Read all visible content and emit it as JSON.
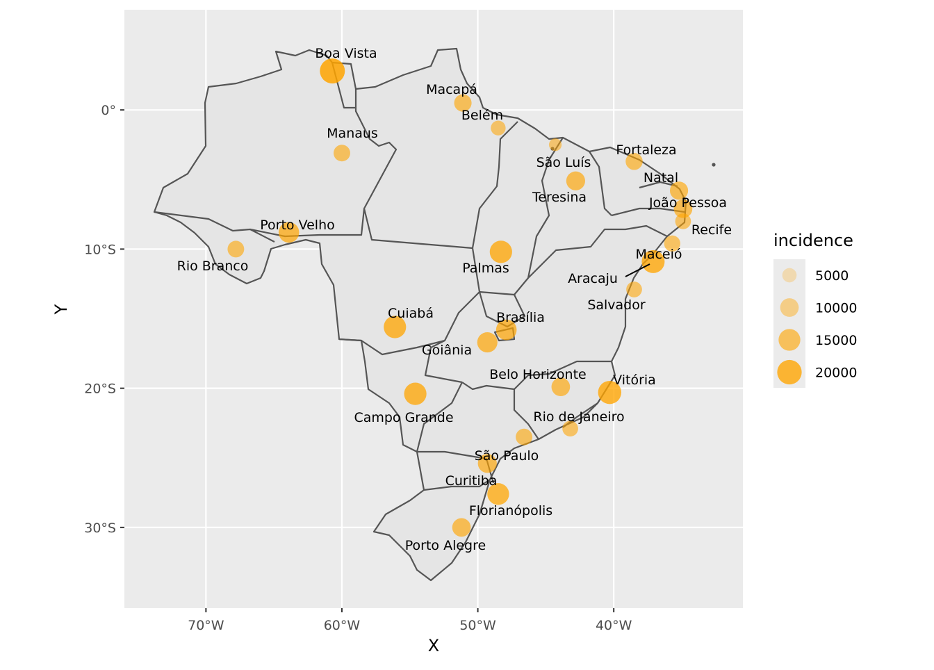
{
  "map": {
    "xlabel": "X",
    "ylabel": "Y",
    "x_ticks": [
      {
        "lon": -70,
        "label": "70°W"
      },
      {
        "lon": -60,
        "label": "60°W"
      },
      {
        "lon": -50,
        "label": "50°W"
      },
      {
        "lon": -40,
        "label": "40°W"
      }
    ],
    "y_ticks": [
      {
        "lat": 0,
        "label": "0°"
      },
      {
        "lat": -10,
        "label": "10°S"
      },
      {
        "lat": -20,
        "label": "20°S"
      },
      {
        "lat": -30,
        "label": "30°S"
      }
    ],
    "point_color": "#FFA500",
    "legend": {
      "title": "incidence",
      "entries": [
        {
          "value": 5000,
          "label": "5000"
        },
        {
          "value": 10000,
          "label": "10000"
        },
        {
          "value": 15000,
          "label": "15000"
        },
        {
          "value": 20000,
          "label": "20000"
        }
      ]
    }
  },
  "chart_data": {
    "type": "scatter",
    "xlabel": "X",
    "ylabel": "Y",
    "xlim": [
      -76,
      -30.5
    ],
    "ylim": [
      -35.8,
      7.2
    ],
    "size_variable": "incidence",
    "points": [
      {
        "city": "Boa Vista",
        "lon": -60.7,
        "lat": 2.8,
        "incidence": 21000
      },
      {
        "city": "Macapá",
        "lon": -51.1,
        "lat": 0.5,
        "incidence": 8500
      },
      {
        "city": "Belém",
        "lon": -48.5,
        "lat": -1.3,
        "incidence": 5500
      },
      {
        "city": "Manaus",
        "lon": -60.0,
        "lat": -3.1,
        "incidence": 7500
      },
      {
        "city": "São Luís",
        "lon": -44.3,
        "lat": -2.5,
        "incidence": 3500
      },
      {
        "city": "Fortaleza",
        "lon": -38.5,
        "lat": -3.7,
        "incidence": 8000
      },
      {
        "city": "Teresina",
        "lon": -42.8,
        "lat": -5.1,
        "incidence": 10500
      },
      {
        "city": "Natal",
        "lon": -35.2,
        "lat": -5.8,
        "incidence": 9500
      },
      {
        "city": "João Pessoa",
        "lon": -34.9,
        "lat": -7.1,
        "incidence": 10000
      },
      {
        "city": "Recife",
        "lon": -34.9,
        "lat": -8.0,
        "incidence": 6500
      },
      {
        "city": "Porto Velho",
        "lon": -63.9,
        "lat": -8.8,
        "incidence": 13000
      },
      {
        "city": "Rio Branco",
        "lon": -67.8,
        "lat": -10.0,
        "incidence": 7500
      },
      {
        "city": "Palmas",
        "lon": -48.3,
        "lat": -10.2,
        "incidence": 16000
      },
      {
        "city": "Maceió",
        "lon": -35.7,
        "lat": -9.6,
        "incidence": 7000
      },
      {
        "city": "Aracaju",
        "lon": -37.1,
        "lat": -10.9,
        "incidence": 17000
      },
      {
        "city": "Salvador",
        "lon": -38.5,
        "lat": -12.9,
        "incidence": 6500
      },
      {
        "city": "Cuiabá",
        "lon": -56.1,
        "lat": -15.6,
        "incidence": 16000
      },
      {
        "city": "Brasília",
        "lon": -47.9,
        "lat": -15.8,
        "incidence": 13000
      },
      {
        "city": "Goiânia",
        "lon": -49.3,
        "lat": -16.7,
        "incidence": 12500
      },
      {
        "city": "Belo Horizonte",
        "lon": -43.9,
        "lat": -19.9,
        "incidence": 10000
      },
      {
        "city": "Vitória",
        "lon": -40.3,
        "lat": -20.3,
        "incidence": 17500
      },
      {
        "city": "Campo Grande",
        "lon": -54.6,
        "lat": -20.4,
        "incidence": 16000
      },
      {
        "city": "Rio de Janeiro",
        "lon": -43.2,
        "lat": -22.9,
        "incidence": 6500
      },
      {
        "city": "São Paulo",
        "lon": -46.6,
        "lat": -23.5,
        "incidence": 7500
      },
      {
        "city": "Curitiba",
        "lon": -49.3,
        "lat": -25.4,
        "incidence": 10500
      },
      {
        "city": "Florianópolis",
        "lon": -48.5,
        "lat": -27.6,
        "incidence": 15000
      },
      {
        "city": "Porto Alegre",
        "lon": -51.2,
        "lat": -30.0,
        "incidence": 10000
      }
    ]
  }
}
